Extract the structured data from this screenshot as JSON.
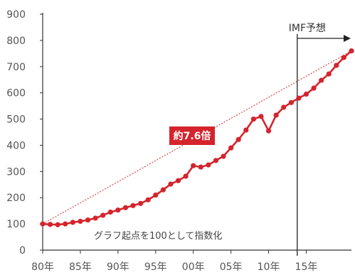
{
  "chart_data": {
    "type": "line",
    "title": "",
    "xlabel": "",
    "ylabel": "",
    "ylim": [
      0,
      900
    ],
    "y_ticks": [
      "0",
      "100",
      "200",
      "300",
      "400",
      "500",
      "600",
      "700",
      "800",
      "900"
    ],
    "x_tick_labels": [
      "80年",
      "85年",
      "90年",
      "95年",
      "00年",
      "05年",
      "10年",
      "15年"
    ],
    "x_tick_years": [
      1980,
      1985,
      1990,
      1995,
      2000,
      2005,
      2010,
      2015
    ],
    "xlim": [
      1980,
      2021
    ],
    "grid": false,
    "colors": {
      "series": "#d4242c",
      "trend": "#e06060",
      "badge": "#d4242c",
      "axis": "#333333"
    },
    "series": [
      {
        "x": [
          1980,
          1981,
          1982,
          1983,
          1984,
          1985,
          1986,
          1987,
          1988,
          1989,
          1990,
          1991,
          1992,
          1993,
          1994,
          1995,
          1996,
          1997,
          1998,
          1999,
          2000,
          2001,
          2002,
          2003,
          2004,
          2005,
          2006,
          2007,
          2008,
          2009,
          2010,
          2011,
          2012,
          2013,
          2014,
          2015,
          2016,
          2017,
          2018,
          2019,
          2020,
          2021
        ],
        "values": [
          100,
          98,
          97,
          100,
          106,
          110,
          115,
          122,
          133,
          145,
          153,
          162,
          170,
          178,
          192,
          210,
          230,
          252,
          265,
          282,
          322,
          317,
          325,
          342,
          358,
          390,
          422,
          458,
          500,
          510,
          455,
          515,
          545,
          563,
          580,
          595,
          618,
          648,
          672,
          705,
          735,
          760
        ]
      }
    ],
    "trend_line": {
      "x": [
        1980,
        2021
      ],
      "values": [
        100,
        760
      ]
    },
    "annotations": {
      "badge": "約7.6倍",
      "forecast": "IMF予想",
      "forecast_start_year": 2013.8,
      "note": "グラフ起点を100として指数化"
    }
  }
}
